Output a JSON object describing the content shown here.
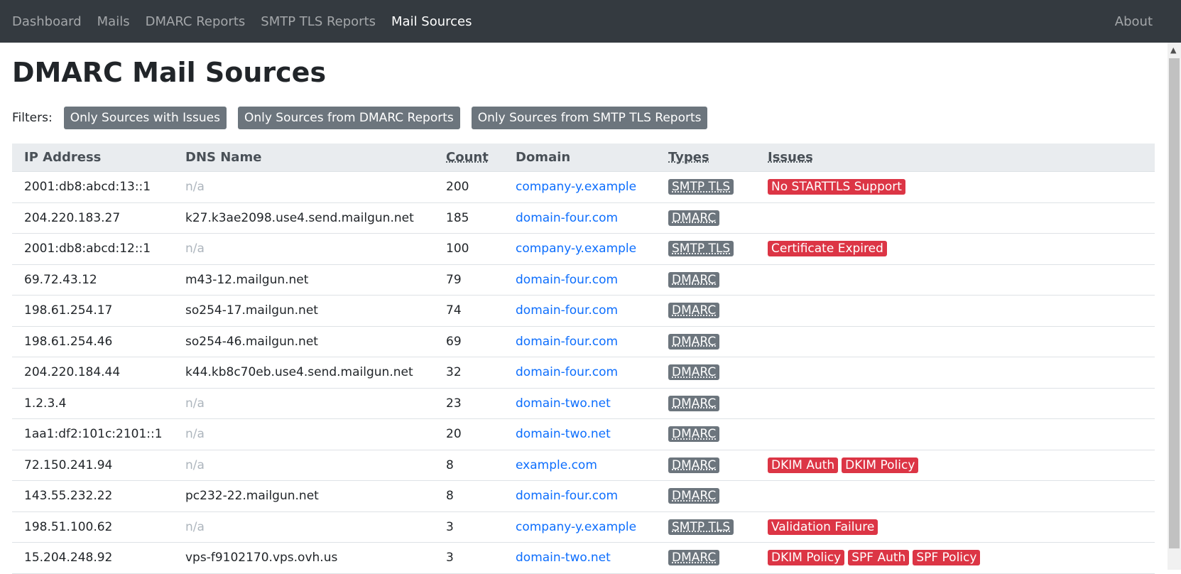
{
  "nav": {
    "items": [
      "Dashboard",
      "Mails",
      "DMARC Reports",
      "SMTP TLS Reports",
      "Mail Sources"
    ],
    "active": 4,
    "about": "About"
  },
  "header": {
    "title": "DMARC Mail Sources"
  },
  "filters": {
    "label": "Filters:",
    "buttons": [
      "Only Sources with Issues",
      "Only Sources from DMARC Reports",
      "Only Sources from SMTP TLS Reports"
    ]
  },
  "table": {
    "columns": [
      "IP Address",
      "DNS Name",
      "Count",
      "Domain",
      "Types",
      "Issues"
    ],
    "rows": [
      {
        "ip": "2001:db8:abcd:13::1",
        "dns": "n/a",
        "count": "200",
        "domain": "company-y.example",
        "types": [
          "SMTP TLS"
        ],
        "issues": [
          "No STARTTLS Support"
        ]
      },
      {
        "ip": "204.220.183.27",
        "dns": "k27.k3ae2098.use4.send.mailgun.net",
        "count": "185",
        "domain": "domain-four.com",
        "types": [
          "DMARC"
        ],
        "issues": []
      },
      {
        "ip": "2001:db8:abcd:12::1",
        "dns": "n/a",
        "count": "100",
        "domain": "company-y.example",
        "types": [
          "SMTP TLS"
        ],
        "issues": [
          "Certificate Expired"
        ]
      },
      {
        "ip": "69.72.43.12",
        "dns": "m43-12.mailgun.net",
        "count": "79",
        "domain": "domain-four.com",
        "types": [
          "DMARC"
        ],
        "issues": []
      },
      {
        "ip": "198.61.254.17",
        "dns": "so254-17.mailgun.net",
        "count": "74",
        "domain": "domain-four.com",
        "types": [
          "DMARC"
        ],
        "issues": []
      },
      {
        "ip": "198.61.254.46",
        "dns": "so254-46.mailgun.net",
        "count": "69",
        "domain": "domain-four.com",
        "types": [
          "DMARC"
        ],
        "issues": []
      },
      {
        "ip": "204.220.184.44",
        "dns": "k44.kb8c70eb.use4.send.mailgun.net",
        "count": "32",
        "domain": "domain-four.com",
        "types": [
          "DMARC"
        ],
        "issues": []
      },
      {
        "ip": "1.2.3.4",
        "dns": "n/a",
        "count": "23",
        "domain": "domain-two.net",
        "types": [
          "DMARC"
        ],
        "issues": []
      },
      {
        "ip": "1aa1:df2:101c:2101::1",
        "dns": "n/a",
        "count": "20",
        "domain": "domain-two.net",
        "types": [
          "DMARC"
        ],
        "issues": []
      },
      {
        "ip": "72.150.241.94",
        "dns": "n/a",
        "count": "8",
        "domain": "example.com",
        "types": [
          "DMARC"
        ],
        "issues": [
          "DKIM Auth",
          "DKIM Policy"
        ]
      },
      {
        "ip": "143.55.232.22",
        "dns": "pc232-22.mailgun.net",
        "count": "8",
        "domain": "domain-four.com",
        "types": [
          "DMARC"
        ],
        "issues": []
      },
      {
        "ip": "198.51.100.62",
        "dns": "n/a",
        "count": "3",
        "domain": "company-y.example",
        "types": [
          "SMTP TLS"
        ],
        "issues": [
          "Validation Failure"
        ]
      },
      {
        "ip": "15.204.248.92",
        "dns": "vps-f9102170.vps.ovh.us",
        "count": "3",
        "domain": "domain-two.net",
        "types": [
          "DMARC"
        ],
        "issues": [
          "DKIM Policy",
          "SPF Auth",
          "SPF Policy"
        ]
      }
    ]
  }
}
